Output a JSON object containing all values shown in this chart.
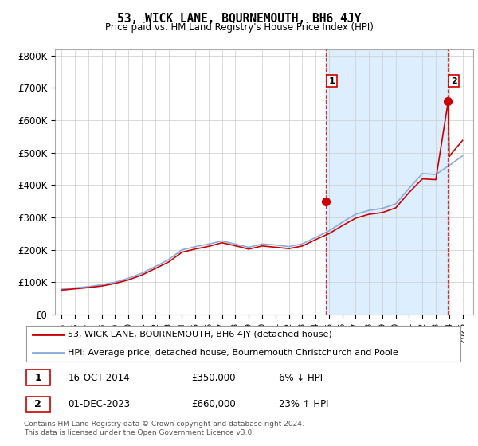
{
  "title": "53, WICK LANE, BOURNEMOUTH, BH6 4JY",
  "subtitle": "Price paid vs. HM Land Registry's House Price Index (HPI)",
  "ylabel_ticks": [
    "£0",
    "£100K",
    "£200K",
    "£300K",
    "£400K",
    "£500K",
    "£600K",
    "£700K",
    "£800K"
  ],
  "ytick_vals": [
    0,
    100000,
    200000,
    300000,
    400000,
    500000,
    600000,
    700000,
    800000
  ],
  "ylim": [
    0,
    820000
  ],
  "xlim_start": 1994.5,
  "xlim_end": 2025.8,
  "legend_line1": "53, WICK LANE, BOURNEMOUTH, BH6 4JY (detached house)",
  "legend_line2": "HPI: Average price, detached house, Bournemouth Christchurch and Poole",
  "sale1_label": "1",
  "sale1_date": "16-OCT-2014",
  "sale1_price": "£350,000",
  "sale1_hpi": "6% ↓ HPI",
  "sale2_label": "2",
  "sale2_date": "01-DEC-2023",
  "sale2_price": "£660,000",
  "sale2_hpi": "23% ↑ HPI",
  "footer1": "Contains HM Land Registry data © Crown copyright and database right 2024.",
  "footer2": "This data is licensed under the Open Government Licence v3.0.",
  "sale_color": "#cc0000",
  "hpi_color": "#88aadd",
  "shade_color": "#ddeeff",
  "marker1_x": 2014.8,
  "marker1_y": 350000,
  "marker2_x": 2023.92,
  "marker2_y": 660000,
  "vline1_x": 2014.8,
  "vline2_x": 2023.92
}
